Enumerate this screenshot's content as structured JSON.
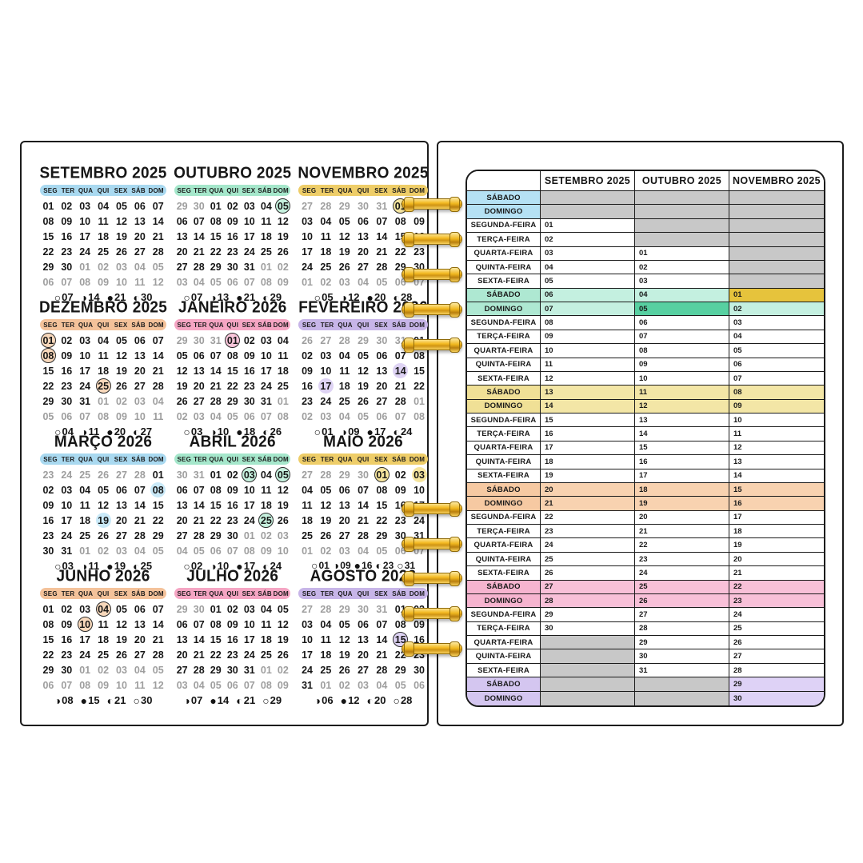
{
  "colors": {
    "gray_cell": "#c8c8c8",
    "holiday_green": "#57d0a1",
    "holiday_gold": "#e6c33c",
    "coil_gold": "#f3b921",
    "themes": {
      "blue": {
        "pill": "#a9d9f0",
        "hl": "#c9e9f8"
      },
      "mint": {
        "pill": "#a5e7cb",
        "hl": "#c6f1de"
      },
      "yellow": {
        "pill": "#eecd68",
        "hl": "#f6e59e"
      },
      "peach": {
        "pill": "#f4c29a",
        "hl": "#f8d8bb"
      },
      "pink": {
        "pill": "#f5a5c3",
        "hl": "#f9c6da"
      },
      "lavender": {
        "pill": "#c7b5e8",
        "hl": "#ded3f4"
      }
    },
    "week_tints": {
      "blue": {
        "label": "#b5e1f4",
        "cell": "#c9e9f8"
      },
      "teal": {
        "label": "#aee8d2",
        "cell": "#c4f0e0"
      },
      "yellow": {
        "label": "#f0e096",
        "cell": "#f3e6a6"
      },
      "peach": {
        "label": "#f6c9a2",
        "cell": "#f8d2b0"
      },
      "pink": {
        "label": "#f6b4cf",
        "cell": "#f8c0d8"
      },
      "purple": {
        "label": "#d4c6f0",
        "cell": "#ded2f6"
      }
    }
  },
  "moon_glyphs": {
    "full": "○",
    "last": "◑",
    "new": "●",
    "first": "◐"
  },
  "left_page": {
    "weekday_header": [
      "SEG",
      "TER",
      "QUA",
      "QUI",
      "SEX",
      "SÁB",
      "DOM"
    ],
    "calendars": [
      {
        "title": "SETEMBRO 2025",
        "theme": "blue",
        "lead": [],
        "days_in_month": 30,
        "trail_count": 12,
        "ring_days": [],
        "soft_days": [],
        "moon_phases": [
          {
            "phase": "full",
            "day": "07"
          },
          {
            "phase": "last",
            "day": "14"
          },
          {
            "phase": "new",
            "day": "21"
          },
          {
            "phase": "first",
            "day": "30"
          }
        ]
      },
      {
        "title": "OUTUBRO 2025",
        "theme": "mint",
        "lead": [
          "29",
          "30"
        ],
        "days_in_month": 31,
        "trail_count": 9,
        "ring_days": [
          "05"
        ],
        "soft_days": [],
        "moon_phases": [
          {
            "phase": "full",
            "day": "07"
          },
          {
            "phase": "last",
            "day": "13"
          },
          {
            "phase": "new",
            "day": "21"
          },
          {
            "phase": "first",
            "day": "29"
          }
        ]
      },
      {
        "title": "NOVEMBRO 2025",
        "theme": "yellow",
        "lead": [
          "27",
          "28",
          "29",
          "30",
          "31"
        ],
        "days_in_month": 30,
        "trail_count": 7,
        "ring_days": [
          "01"
        ],
        "soft_days": [],
        "moon_phases": [
          {
            "phase": "full",
            "day": "05"
          },
          {
            "phase": "last",
            "day": "12"
          },
          {
            "phase": "new",
            "day": "20"
          },
          {
            "phase": "first",
            "day": "28"
          }
        ]
      },
      {
        "title": "DEZEMBRO 2025",
        "theme": "peach",
        "lead": [],
        "days_in_month": 31,
        "trail_count": 11,
        "ring_days": [
          "01",
          "08",
          "25"
        ],
        "soft_days": [],
        "moon_phases": [
          {
            "phase": "full",
            "day": "04"
          },
          {
            "phase": "last",
            "day": "11"
          },
          {
            "phase": "new",
            "day": "20"
          },
          {
            "phase": "first",
            "day": "27"
          }
        ]
      },
      {
        "title": "JANEIRO 2026",
        "theme": "pink",
        "lead": [
          "29",
          "30",
          "31"
        ],
        "days_in_month": 31,
        "trail_count": 8,
        "ring_days": [
          "01"
        ],
        "soft_days": [],
        "moon_phases": [
          {
            "phase": "full",
            "day": "03"
          },
          {
            "phase": "last",
            "day": "10"
          },
          {
            "phase": "new",
            "day": "18"
          },
          {
            "phase": "first",
            "day": "26"
          }
        ]
      },
      {
        "title": "FEVEREIRO 2026",
        "theme": "lavender",
        "lead": [
          "26",
          "27",
          "28",
          "29",
          "30",
          "31"
        ],
        "days_in_month": 28,
        "trail_count": 8,
        "ring_days": [],
        "soft_days": [
          "14",
          "17"
        ],
        "moon_phases": [
          {
            "phase": "full",
            "day": "01"
          },
          {
            "phase": "last",
            "day": "09"
          },
          {
            "phase": "new",
            "day": "17"
          },
          {
            "phase": "first",
            "day": "24"
          }
        ]
      },
      {
        "title": "MARÇO 2026",
        "theme": "blue",
        "lead": [
          "23",
          "24",
          "25",
          "26",
          "27",
          "28"
        ],
        "days_in_month": 31,
        "trail_count": 5,
        "ring_days": [],
        "soft_days": [
          "08",
          "19"
        ],
        "moon_phases": [
          {
            "phase": "full",
            "day": "03"
          },
          {
            "phase": "last",
            "day": "11"
          },
          {
            "phase": "new",
            "day": "19"
          },
          {
            "phase": "first",
            "day": "25"
          }
        ]
      },
      {
        "title": "ABRIL 2026",
        "theme": "mint",
        "lead": [
          "30",
          "31"
        ],
        "days_in_month": 30,
        "trail_count": 10,
        "ring_days": [
          "03",
          "05",
          "25"
        ],
        "soft_days": [],
        "moon_phases": [
          {
            "phase": "full",
            "day": "02"
          },
          {
            "phase": "last",
            "day": "10"
          },
          {
            "phase": "new",
            "day": "17"
          },
          {
            "phase": "first",
            "day": "24"
          }
        ]
      },
      {
        "title": "MAIO 2026",
        "theme": "yellow",
        "lead": [
          "27",
          "28",
          "29",
          "30"
        ],
        "days_in_month": 31,
        "trail_count": 7,
        "ring_days": [
          "01"
        ],
        "soft_days": [
          "03"
        ],
        "moon_phases": [
          {
            "phase": "full",
            "day": "01"
          },
          {
            "phase": "last",
            "day": "09"
          },
          {
            "phase": "new",
            "day": "16"
          },
          {
            "phase": "first",
            "day": "23"
          },
          {
            "phase": "full",
            "day": "31"
          }
        ]
      },
      {
        "title": "JUNHO 2026",
        "theme": "peach",
        "lead": [],
        "days_in_month": 30,
        "trail_count": 12,
        "ring_days": [
          "04",
          "10"
        ],
        "soft_days": [],
        "moon_phases": [
          {
            "phase": "last",
            "day": "08"
          },
          {
            "phase": "new",
            "day": "15"
          },
          {
            "phase": "first",
            "day": "21"
          },
          {
            "phase": "full",
            "day": "30"
          }
        ]
      },
      {
        "title": "JULHO 2026",
        "theme": "pink",
        "lead": [
          "29",
          "30"
        ],
        "days_in_month": 31,
        "trail_count": 9,
        "ring_days": [],
        "soft_days": [],
        "moon_phases": [
          {
            "phase": "last",
            "day": "07"
          },
          {
            "phase": "new",
            "day": "14"
          },
          {
            "phase": "first",
            "day": "21"
          },
          {
            "phase": "full",
            "day": "29"
          }
        ]
      },
      {
        "title": "AGOSTO 2026",
        "theme": "lavender",
        "lead": [
          "27",
          "28",
          "29",
          "30",
          "31"
        ],
        "days_in_month": 31,
        "trail_count": 6,
        "ring_days": [
          "15"
        ],
        "soft_days": [],
        "moon_phases": [
          {
            "phase": "last",
            "day": "06"
          },
          {
            "phase": "new",
            "day": "12"
          },
          {
            "phase": "first",
            "day": "20"
          },
          {
            "phase": "full",
            "day": "28"
          }
        ]
      }
    ]
  },
  "right_page": {
    "columns": [
      "SETEMBRO 2025",
      "OUTUBRO 2025",
      "NOVEMBRO 2025"
    ],
    "rows": [
      {
        "label": "SÁBADO",
        "wk": "blue",
        "cells": [
          null,
          null,
          null
        ]
      },
      {
        "label": "DOMINGO",
        "wk": "blue",
        "cells": [
          null,
          null,
          null
        ]
      },
      {
        "label": "SEGUNDA-FEIRA",
        "wk": null,
        "cells": [
          "01",
          null,
          null
        ]
      },
      {
        "label": "TERÇA-FEIRA",
        "wk": null,
        "cells": [
          "02",
          null,
          null
        ]
      },
      {
        "label": "QUARTA-FEIRA",
        "wk": null,
        "cells": [
          "03",
          "01",
          null
        ]
      },
      {
        "label": "QUINTA-FEIRA",
        "wk": null,
        "cells": [
          "04",
          "02",
          null
        ]
      },
      {
        "label": "SEXTA-FEIRA",
        "wk": null,
        "cells": [
          "05",
          "03",
          null
        ]
      },
      {
        "label": "SÁBADO",
        "wk": "teal",
        "cells": [
          "06",
          "04",
          "01"
        ],
        "special": {
          "2": "gold"
        }
      },
      {
        "label": "DOMINGO",
        "wk": "teal",
        "cells": [
          "07",
          "05",
          "02"
        ],
        "special": {
          "1": "green"
        }
      },
      {
        "label": "SEGUNDA-FEIRA",
        "wk": null,
        "cells": [
          "08",
          "06",
          "03"
        ]
      },
      {
        "label": "TERÇA-FEIRA",
        "wk": null,
        "cells": [
          "09",
          "07",
          "04"
        ]
      },
      {
        "label": "QUARTA-FEIRA",
        "wk": null,
        "cells": [
          "10",
          "08",
          "05"
        ]
      },
      {
        "label": "QUINTA-FEIRA",
        "wk": null,
        "cells": [
          "11",
          "09",
          "06"
        ]
      },
      {
        "label": "SEXTA-FEIRA",
        "wk": null,
        "cells": [
          "12",
          "10",
          "07"
        ]
      },
      {
        "label": "SÁBADO",
        "wk": "yellow",
        "cells": [
          "13",
          "11",
          "08"
        ]
      },
      {
        "label": "DOMINGO",
        "wk": "yellow",
        "cells": [
          "14",
          "12",
          "09"
        ]
      },
      {
        "label": "SEGUNDA-FEIRA",
        "wk": null,
        "cells": [
          "15",
          "13",
          "10"
        ]
      },
      {
        "label": "TERÇA-FEIRA",
        "wk": null,
        "cells": [
          "16",
          "14",
          "11"
        ]
      },
      {
        "label": "QUARTA-FEIRA",
        "wk": null,
        "cells": [
          "17",
          "15",
          "12"
        ]
      },
      {
        "label": "QUINTA-FEIRA",
        "wk": null,
        "cells": [
          "18",
          "16",
          "13"
        ]
      },
      {
        "label": "SEXTA-FEIRA",
        "wk": null,
        "cells": [
          "19",
          "17",
          "14"
        ]
      },
      {
        "label": "SÁBADO",
        "wk": "peach",
        "cells": [
          "20",
          "18",
          "15"
        ]
      },
      {
        "label": "DOMINGO",
        "wk": "peach",
        "cells": [
          "21",
          "19",
          "16"
        ]
      },
      {
        "label": "SEGUNDA-FEIRA",
        "wk": null,
        "cells": [
          "22",
          "20",
          "17"
        ]
      },
      {
        "label": "TERÇA-FEIRA",
        "wk": null,
        "cells": [
          "23",
          "21",
          "18"
        ]
      },
      {
        "label": "QUARTA-FEIRA",
        "wk": null,
        "cells": [
          "24",
          "22",
          "19"
        ]
      },
      {
        "label": "QUINTA-FEIRA",
        "wk": null,
        "cells": [
          "25",
          "23",
          "20"
        ]
      },
      {
        "label": "SEXTA-FEIRA",
        "wk": null,
        "cells": [
          "26",
          "24",
          "21"
        ]
      },
      {
        "label": "SÁBADO",
        "wk": "pink",
        "cells": [
          "27",
          "25",
          "22"
        ]
      },
      {
        "label": "DOMINGO",
        "wk": "pink",
        "cells": [
          "28",
          "26",
          "23"
        ]
      },
      {
        "label": "SEGUNDA-FEIRA",
        "wk": null,
        "cells": [
          "29",
          "27",
          "24"
        ]
      },
      {
        "label": "TERÇA-FEIRA",
        "wk": null,
        "cells": [
          "30",
          "28",
          "25"
        ]
      },
      {
        "label": "QUARTA-FEIRA",
        "wk": null,
        "cells": [
          null,
          "29",
          "26"
        ]
      },
      {
        "label": "QUINTA-FEIRA",
        "wk": null,
        "cells": [
          null,
          "30",
          "27"
        ]
      },
      {
        "label": "SEXTA-FEIRA",
        "wk": null,
        "cells": [
          null,
          "31",
          "28"
        ]
      },
      {
        "label": "SÁBADO",
        "wk": "purple",
        "cells": [
          null,
          null,
          "29"
        ]
      },
      {
        "label": "DOMINGO",
        "wk": "purple",
        "cells": [
          null,
          null,
          "30"
        ]
      }
    ]
  },
  "binding": {
    "coil_count": 10,
    "coil_tops": [
      248,
      292,
      336,
      380,
      424,
      629,
      673,
      716,
      760,
      804
    ]
  }
}
